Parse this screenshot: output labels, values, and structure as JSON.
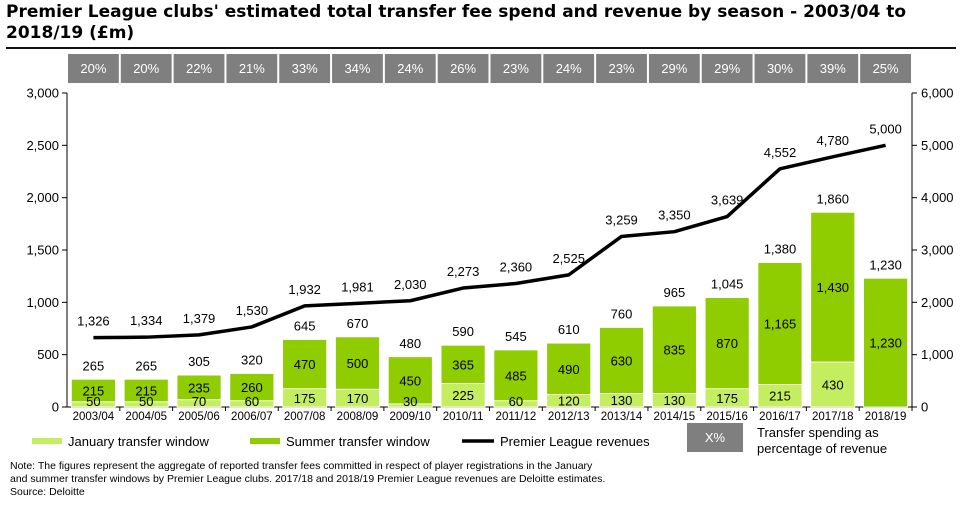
{
  "title": "Premier League clubs' estimated total transfer fee spend and revenue by season - 2003/04 to 2018/19 (£m)",
  "chart_data": {
    "type": "bar",
    "stacked": true,
    "categories": [
      "2003/04",
      "2004/05",
      "2005/06",
      "2006/07",
      "2007/08",
      "2008/09",
      "2009/10",
      "2010/11",
      "2011/12",
      "2012/13",
      "2013/14",
      "2014/15",
      "2015/16",
      "2016/17",
      "2017/18",
      "2018/19"
    ],
    "percent_labels": [
      "20%",
      "20%",
      "22%",
      "21%",
      "33%",
      "34%",
      "24%",
      "26%",
      "23%",
      "24%",
      "23%",
      "29%",
      "29%",
      "30%",
      "39%",
      "25%"
    ],
    "series": [
      {
        "name": "January transfer window",
        "type": "bar",
        "color": "#c4ee5f",
        "values": [
          50,
          50,
          70,
          60,
          175,
          170,
          30,
          225,
          60,
          120,
          130,
          130,
          175,
          215,
          430,
          0
        ],
        "labels": [
          "50",
          "50",
          "70",
          "60",
          "175",
          "170",
          "30",
          "225",
          "60",
          "120",
          "130",
          "130",
          "175",
          "215",
          "430",
          ""
        ]
      },
      {
        "name": "Summer transfer window",
        "type": "bar",
        "color": "#8fcc00",
        "values": [
          215,
          215,
          235,
          260,
          470,
          500,
          450,
          365,
          485,
          490,
          630,
          835,
          870,
          1165,
          1430,
          1230
        ],
        "labels": [
          "215",
          "215",
          "235",
          "260",
          "470",
          "500",
          "450",
          "365",
          "485",
          "490",
          "630",
          "835",
          "870",
          "1,165",
          "1,430",
          "1,230"
        ]
      },
      {
        "name": "Premier League revenues",
        "type": "line",
        "axis": "right",
        "color": "#000000",
        "values": [
          1326,
          1334,
          1379,
          1530,
          1932,
          1981,
          2030,
          2273,
          2360,
          2525,
          3259,
          3350,
          3639,
          4552,
          4780,
          5000
        ],
        "labels": [
          "1,326",
          "1,334",
          "1,379",
          "1,530",
          "1,932",
          "1,981",
          "2,030",
          "2,273",
          "2,360",
          "2,525",
          "3,259",
          "3,350",
          "3,639",
          "4,552",
          "4,780",
          "5,000"
        ]
      }
    ],
    "totals": [
      "265",
      "265",
      "305",
      "320",
      "645",
      "670",
      "480",
      "590",
      "545",
      "610",
      "760",
      "965",
      "1,045",
      "1,380",
      "1,860",
      "1,230"
    ],
    "y_left": {
      "min": 0,
      "max": 3000,
      "ticks": [
        "0",
        "500",
        "1,000",
        "1,500",
        "2,000",
        "2,500",
        "3,000"
      ]
    },
    "y_right": {
      "min": 0,
      "max": 6000,
      "ticks": [
        "0",
        "1,000",
        "2,000",
        "3,000",
        "4,000",
        "5,000",
        "6,000"
      ]
    },
    "legend": {
      "items": [
        "January transfer window",
        "Summer transfer window",
        "Premier League revenues"
      ],
      "pct_box": "X%",
      "pct_desc_1": "Transfer spending as",
      "pct_desc_2": "percentage of revenue",
      "position": "bottom"
    },
    "colors": {
      "pct_box": "#7f7f7f",
      "pct_text": "#ffffff",
      "light": "#c4ee5f",
      "dark": "#8fcc00",
      "line": "#000000"
    }
  },
  "notes": {
    "line1": "Note: The figures represent the aggregate of reported transfer fees committed in respect of player registrations in the January",
    "line2": "and summer transfer windows by Premier League clubs. 2017/18 and 2018/19 Premier League revenues are Deloitte estimates.",
    "source": "Source: Deloitte"
  }
}
